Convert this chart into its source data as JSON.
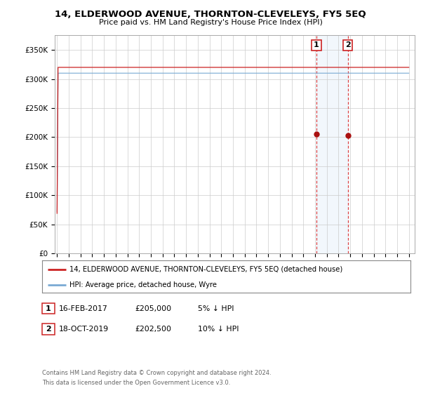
{
  "title": "14, ELDERWOOD AVENUE, THORNTON-CLEVELEYS, FY5 5EQ",
  "subtitle": "Price paid vs. HM Land Registry's House Price Index (HPI)",
  "ylabel_ticks": [
    "£0",
    "£50K",
    "£100K",
    "£150K",
    "£200K",
    "£250K",
    "£300K",
    "£350K"
  ],
  "ytick_vals": [
    0,
    50000,
    100000,
    150000,
    200000,
    250000,
    300000,
    350000
  ],
  "ylim": [
    0,
    375000
  ],
  "xlim_start": 1994.8,
  "xlim_end": 2025.5,
  "hpi_color": "#7aaad4",
  "price_color": "#cc2222",
  "marker_color": "#aa1111",
  "transaction1": {
    "date": "16-FEB-2017",
    "price": 205000,
    "label": "1",
    "year": 2017.12
  },
  "transaction2": {
    "date": "18-OCT-2019",
    "price": 202500,
    "label": "2",
    "year": 2019.8
  },
  "legend_line1": "14, ELDERWOOD AVENUE, THORNTON-CLEVELEYS, FY5 5EQ (detached house)",
  "legend_line2": "HPI: Average price, detached house, Wyre",
  "footnote1": "Contains HM Land Registry data © Crown copyright and database right 2024.",
  "footnote2": "This data is licensed under the Open Government Licence v3.0.",
  "table_row1": [
    "1",
    "16-FEB-2017",
    "£205,000",
    "5% ↓ HPI"
  ],
  "table_row2": [
    "2",
    "18-OCT-2019",
    "£202,500",
    "10% ↓ HPI"
  ],
  "background_color": "#ffffff",
  "grid_color": "#cccccc"
}
